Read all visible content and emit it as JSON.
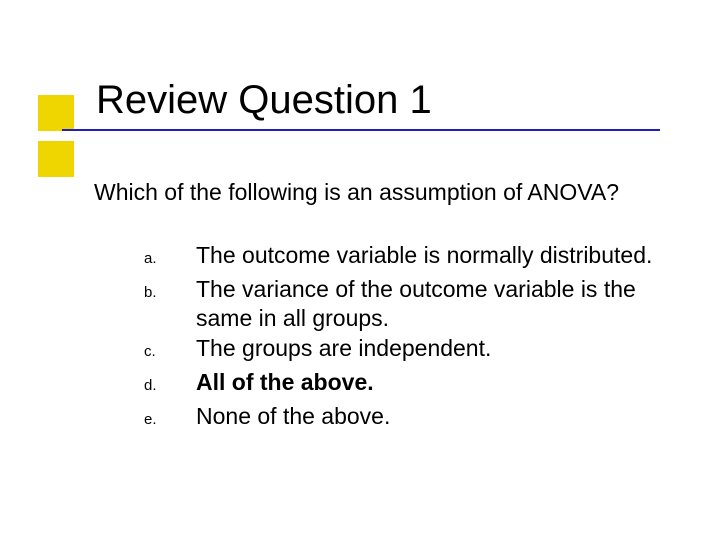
{
  "title": "Review Question 1",
  "question": "Which of the following is an assumption of ANOVA?",
  "options": [
    {
      "letter": "a.",
      "text": "The outcome variable is normally distributed.",
      "bold": false
    },
    {
      "letter": "b.",
      "text": "The variance of the outcome variable is the same in all groups.",
      "bold": false
    },
    {
      "letter": "c.",
      "text": "The groups are independent.",
      "bold": false
    },
    {
      "letter": "d.",
      "text": "All of the above.",
      "bold": true
    },
    {
      "letter": "e.",
      "text": "None of the above.",
      "bold": false
    }
  ],
  "style": {
    "accent_color": "#efd600",
    "underline_color": "#1f1fbd",
    "background_color": "#ffffff",
    "text_color": "#000000",
    "title_fontsize": 40,
    "body_fontsize": 23,
    "letter_fontsize": 15
  }
}
